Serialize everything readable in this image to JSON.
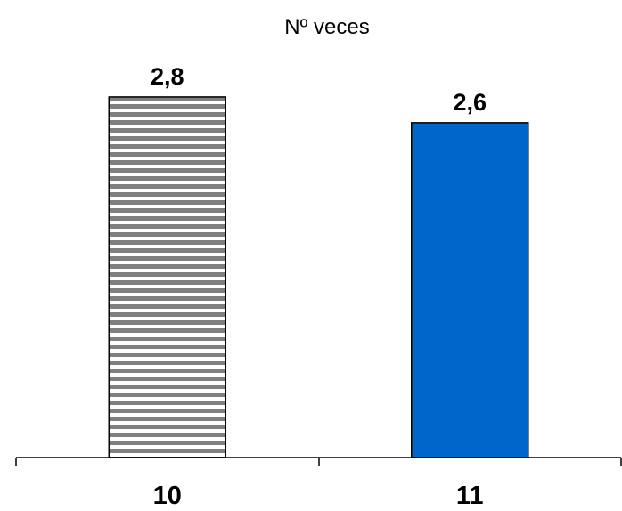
{
  "chart_data": {
    "type": "bar",
    "title": "Nº veces",
    "xlabel": "",
    "ylabel": "",
    "categories": [
      "10",
      "11"
    ],
    "values": [
      2.8,
      2.6
    ],
    "data_labels": [
      "2,8",
      "2,6"
    ],
    "ylim": [
      0,
      3.0
    ],
    "grid": false,
    "legend": "none",
    "bar_styles": [
      {
        "pattern": "horizontal-stripes",
        "color": "#808080",
        "background": "#ffffff"
      },
      {
        "pattern": "solid",
        "color": "#0066CC"
      }
    ]
  }
}
